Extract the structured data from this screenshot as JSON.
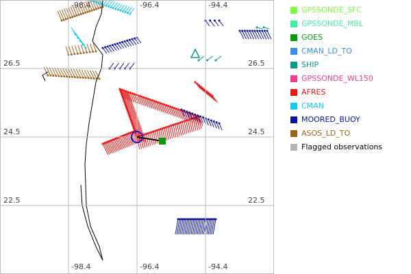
{
  "map": {
    "top_lon_labels": [
      "-98.4",
      "-96.4",
      "-94.4"
    ],
    "bottom_lon_labels": [
      "-98.4",
      "-96.4",
      "-94.4"
    ],
    "left_lat_labels": [
      "26.5",
      "24.5",
      "22.5"
    ],
    "right_lat_labels": [
      "26.5",
      "24.5",
      "22.5"
    ]
  },
  "legend": [
    {
      "label": "GPSSONDE_SFC",
      "color": "#7cfc3c",
      "text_color": "#7cfc3c"
    },
    {
      "label": "GPSSONDE_MBL",
      "color": "#3cf0a0",
      "text_color": "#3cf0a0"
    },
    {
      "label": "GOES",
      "color": "#0a9a0a",
      "text_color": "#0a9a0a"
    },
    {
      "label": "CMAN_LD_TO",
      "color": "#3c8cf0",
      "text_color": "#3c8cf0"
    },
    {
      "label": "SHIP",
      "color": "#0a9a8a",
      "text_color": "#0a9a8a"
    },
    {
      "label": "GPSSONDE_WL150",
      "color": "#f03c8c",
      "text_color": "#f03c8c"
    },
    {
      "label": "AFRES",
      "color": "#f01414",
      "text_color": "#f01414"
    },
    {
      "label": "CMAN",
      "color": "#14c8f0",
      "text_color": "#14c8f0"
    },
    {
      "label": "MOORED_BUOY",
      "color": "#0a14a0",
      "text_color": "#0a14a0"
    },
    {
      "label": "ASOS_LD_TO",
      "color": "#a0641e",
      "text_color": "#a0641e"
    },
    {
      "label": "Flagged observations",
      "color": "#b4b4b4",
      "text_color": "#000000"
    }
  ]
}
